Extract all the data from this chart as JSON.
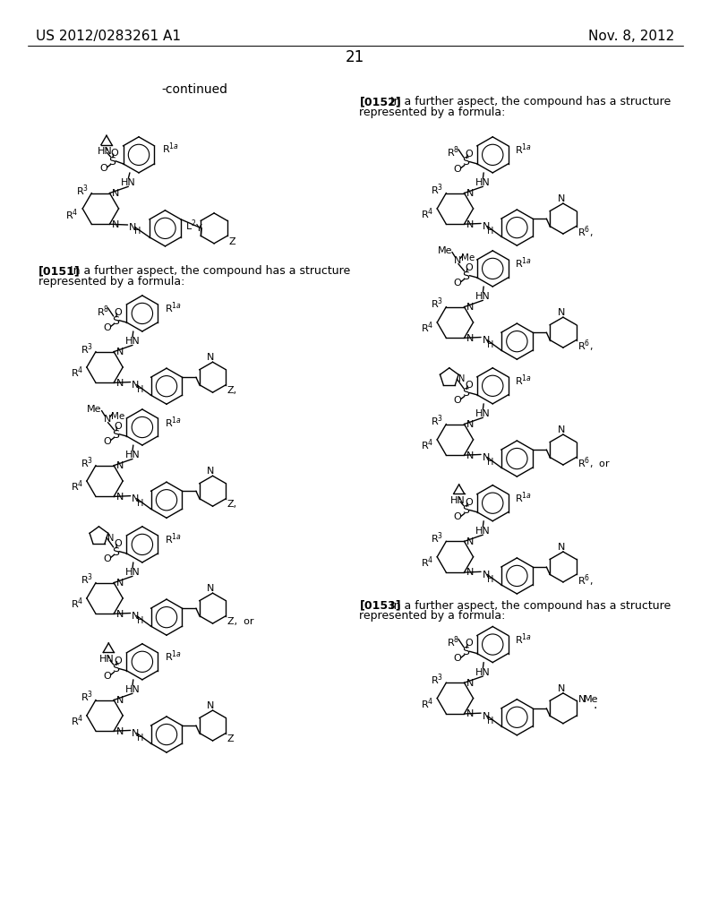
{
  "background_color": "#ffffff",
  "page_number": "21",
  "left_header": "US 2012/0283261 A1",
  "right_header": "Nov. 8, 2012"
}
